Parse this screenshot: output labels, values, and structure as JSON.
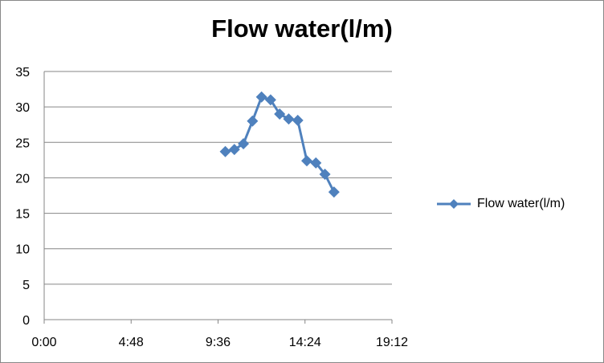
{
  "chart_data": {
    "type": "line",
    "title": "Flow water(l/m)",
    "xlabel": "",
    "ylabel": "",
    "x_ticks": [
      "0:00",
      "4:48",
      "9:36",
      "14:24",
      "19:12"
    ],
    "xlim_hours": [
      0,
      19.2
    ],
    "y_ticks": [
      "0",
      "5",
      "10",
      "15",
      "20",
      "25",
      "30",
      "35"
    ],
    "ylim": [
      0,
      35
    ],
    "grid": true,
    "legend_position": "right",
    "series": [
      {
        "name": "Flow water(l/m)",
        "color": "#4F81BD",
        "marker": "diamond",
        "x": [
          "10:00",
          "10:30",
          "11:00",
          "11:30",
          "12:00",
          "12:30",
          "13:00",
          "13:30",
          "14:00",
          "14:30",
          "15:00",
          "15:30",
          "16:00"
        ],
        "y": [
          23.7,
          24.0,
          24.8,
          28.0,
          31.4,
          31.0,
          29.0,
          28.3,
          28.1,
          22.4,
          22.1,
          20.5,
          18.0
        ]
      }
    ]
  }
}
